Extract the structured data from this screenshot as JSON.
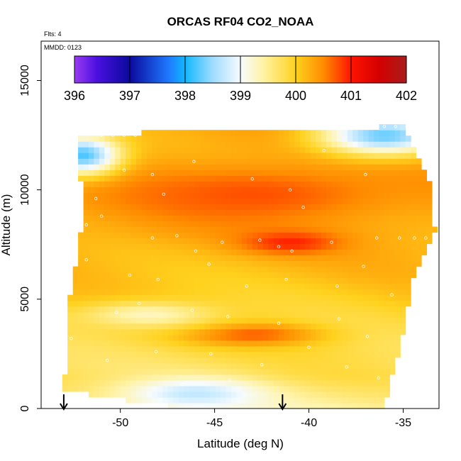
{
  "chart_data": {
    "type": "heatmap",
    "title": "ORCAS RF04 CO2_NOAA",
    "annotations": {
      "flights": "Flts: 4",
      "date": "MMDD: 0123"
    },
    "xlabel": "Latitude (deg N)",
    "ylabel": "Altitude (m)",
    "xlim": [
      -54.2,
      -33.1
    ],
    "ylim": [
      0,
      16800
    ],
    "x_ticks": [
      -50,
      -45,
      -40,
      -35
    ],
    "y_ticks": [
      0,
      5000,
      10000,
      15000
    ],
    "colorbar": {
      "ticks": [
        396,
        397,
        398,
        399,
        400,
        401,
        402
      ],
      "range": [
        396,
        402
      ],
      "stops": [
        {
          "v": 396.0,
          "color": "#9a3cf0"
        },
        {
          "v": 396.4,
          "color": "#4a10e0"
        },
        {
          "v": 397.0,
          "color": "#0a0a9c"
        },
        {
          "v": 397.7,
          "color": "#1e78ff"
        },
        {
          "v": 398.0,
          "color": "#12b8ff"
        },
        {
          "v": 398.5,
          "color": "#9fdcff"
        },
        {
          "v": 399.0,
          "color": "#f6fbff"
        },
        {
          "v": 399.4,
          "color": "#fff3a8"
        },
        {
          "v": 400.0,
          "color": "#ffd21e"
        },
        {
          "v": 400.5,
          "color": "#ff8c00"
        },
        {
          "v": 401.0,
          "color": "#ff1400"
        },
        {
          "v": 401.5,
          "color": "#d40000"
        },
        {
          "v": 402.0,
          "color": "#a81c1c"
        }
      ]
    },
    "curtain_extent": {
      "top": [
        [
          -52.2,
          12400
        ],
        [
          -49.5,
          12600
        ],
        [
          -39.4,
          12800
        ],
        [
          -35.0,
          12900
        ],
        [
          -34.4,
          11800
        ],
        [
          -33.6,
          10300
        ]
      ],
      "bottom": [
        [
          -53.0,
          800
        ],
        [
          -46.5,
          0
        ],
        [
          -36.2,
          0
        ],
        [
          -35.8,
          700
        ]
      ],
      "left": [
        [
          -53.0,
          800
        ],
        [
          -52.7,
          5000
        ],
        [
          -52.0,
          8500
        ],
        [
          -52.2,
          12400
        ]
      ],
      "right": [
        [
          -33.6,
          10300
        ],
        [
          -33.3,
          8000
        ],
        [
          -34.5,
          6000
        ],
        [
          -35.0,
          3500
        ],
        [
          -35.8,
          700
        ]
      ]
    },
    "field_features": [
      {
        "lat": -43.0,
        "alt": 9800,
        "co2": 400.75,
        "sx": 7.5,
        "sy": 1300
      },
      {
        "lat": -41.0,
        "alt": 7600,
        "co2": 400.95,
        "sx": 2.5,
        "sy": 500
      },
      {
        "lat": -43.0,
        "alt": 3400,
        "co2": 400.7,
        "sx": 3.5,
        "sy": 500
      },
      {
        "lat": -52.0,
        "alt": 11600,
        "co2": 398.2,
        "sx": 2.0,
        "sy": 900
      },
      {
        "lat": -36.0,
        "alt": 12500,
        "co2": 398.3,
        "sx": 3.5,
        "sy": 900
      },
      {
        "lat": -48.5,
        "alt": 4300,
        "co2": 399.3,
        "sx": 3.5,
        "sy": 600
      },
      {
        "lat": -46.0,
        "alt": 700,
        "co2": 398.7,
        "sx": 3.5,
        "sy": 700
      }
    ],
    "sample_points": [
      [
        -51.0,
        12500
      ],
      [
        -50.4,
        12500
      ],
      [
        -49.8,
        12500
      ],
      [
        -49.2,
        12500
      ],
      [
        -38.4,
        12900
      ],
      [
        -37.8,
        12900
      ],
      [
        -37.2,
        12900
      ],
      [
        -36.6,
        12900
      ],
      [
        -36.0,
        12900
      ],
      [
        -35.4,
        12900
      ],
      [
        -34.8,
        12900
      ],
      [
        -49.8,
        10900
      ],
      [
        -48.3,
        10700
      ],
      [
        -47.7,
        9800
      ],
      [
        -46.1,
        11300
      ],
      [
        -43.0,
        10500
      ],
      [
        -41.0,
        10000
      ],
      [
        -40.3,
        9200
      ],
      [
        -39.2,
        11800
      ],
      [
        -37.0,
        10700
      ],
      [
        -51.3,
        9600
      ],
      [
        -51.0,
        8800
      ],
      [
        -51.8,
        8400
      ],
      [
        -48.3,
        7800
      ],
      [
        -47.0,
        7900
      ],
      [
        -46.0,
        7200
      ],
      [
        -44.6,
        7600
      ],
      [
        -42.6,
        7700
      ],
      [
        -41.6,
        7400
      ],
      [
        -40.9,
        7200
      ],
      [
        -38.8,
        7600
      ],
      [
        -36.4,
        7800
      ],
      [
        -35.2,
        7800
      ],
      [
        -34.4,
        7800
      ],
      [
        -33.8,
        7800
      ],
      [
        -51.8,
        6800
      ],
      [
        -49.5,
        6100
      ],
      [
        -48.0,
        5900
      ],
      [
        -45.3,
        6600
      ],
      [
        -43.3,
        5600
      ],
      [
        -41.2,
        5900
      ],
      [
        -38.5,
        5600
      ],
      [
        -37.1,
        6500
      ],
      [
        -35.6,
        5200
      ],
      [
        -50.2,
        4400
      ],
      [
        -49.0,
        4800
      ],
      [
        -46.2,
        4500
      ],
      [
        -44.3,
        4200
      ],
      [
        -41.6,
        3900
      ],
      [
        -38.4,
        4100
      ],
      [
        -36.9,
        3300
      ],
      [
        -52.6,
        3200
      ],
      [
        -50.7,
        2200
      ],
      [
        -48.1,
        2600
      ],
      [
        -45.2,
        2500
      ],
      [
        -42.5,
        2000
      ],
      [
        -40.0,
        2800
      ],
      [
        -38.0,
        1900
      ],
      [
        -36.3,
        1400
      ],
      [
        -44.2,
        1300
      ],
      [
        -46.7,
        1100
      ]
    ],
    "flight_markers": [
      -53.0,
      -41.4
    ]
  }
}
